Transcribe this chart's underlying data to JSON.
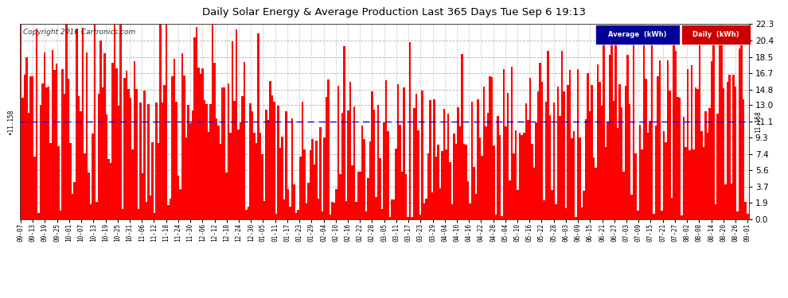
{
  "title": "Daily Solar Energy & Average Production Last 365 Days Tue Sep 6 19:13",
  "copyright": "Copyright 2016 Cartronics.com",
  "average": 11.158,
  "y_ticks": [
    0.0,
    1.9,
    3.7,
    5.6,
    7.4,
    9.3,
    11.1,
    13.0,
    14.8,
    16.7,
    18.5,
    20.4,
    22.3
  ],
  "ymax": 22.3,
  "bar_color": "#ff0000",
  "avg_line_color": "#0000ff",
  "bg_color": "#ffffff",
  "plot_bg_color": "#ffffff",
  "grid_color": "#aaaaaa",
  "title_color": "#000000",
  "legend_avg_bg": "#000099",
  "legend_daily_bg": "#cc0000",
  "legend_text_color": "#ffffff",
  "x_labels": [
    "09-07",
    "09-13",
    "09-19",
    "09-25",
    "10-01",
    "10-07",
    "10-13",
    "10-19",
    "10-25",
    "10-31",
    "11-06",
    "11-12",
    "11-18",
    "11-24",
    "11-30",
    "12-06",
    "12-12",
    "12-18",
    "12-24",
    "12-30",
    "01-05",
    "01-11",
    "01-17",
    "01-23",
    "01-29",
    "02-04",
    "02-10",
    "02-16",
    "02-22",
    "02-28",
    "03-05",
    "03-11",
    "03-17",
    "03-23",
    "03-29",
    "04-04",
    "04-10",
    "04-16",
    "04-22",
    "04-28",
    "05-04",
    "05-10",
    "05-16",
    "05-22",
    "05-28",
    "06-03",
    "06-09",
    "06-15",
    "06-21",
    "06-27",
    "07-03",
    "07-09",
    "07-15",
    "07-21",
    "07-27",
    "08-02",
    "08-08",
    "08-14",
    "08-20",
    "08-26",
    "09-01"
  ],
  "num_days": 365,
  "seed": 7
}
